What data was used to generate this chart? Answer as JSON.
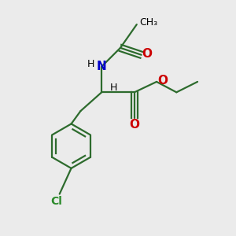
{
  "bg_color": "#ebebeb",
  "bond_color": "#2d6b2d",
  "N_color": "#0000cc",
  "O_color": "#cc0000",
  "Cl_color": "#2a8a2a",
  "text_color_black": "#000000",
  "line_width": 1.6,
  "fig_size": [
    3.0,
    3.0
  ],
  "dpi": 100,
  "xlim": [
    0,
    10
  ],
  "ylim": [
    0,
    10
  ]
}
